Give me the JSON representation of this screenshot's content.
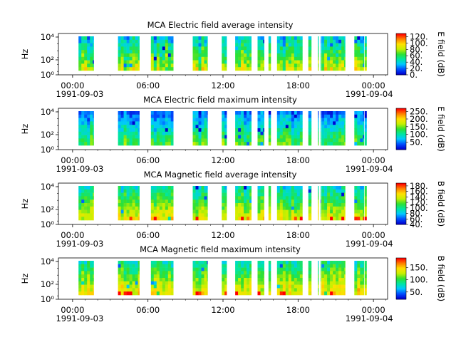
{
  "figure": {
    "background": "#ffffff",
    "colormap": [
      "#0000d0",
      "#0050ff",
      "#00c8ff",
      "#00e6a0",
      "#30e030",
      "#c8f000",
      "#ffe000",
      "#ff8000",
      "#ff0000"
    ]
  },
  "chart_data": [
    {
      "type": "heatmap",
      "title": "MCA  Electric field average intensity",
      "ylabel": "Hz",
      "y_scale": "log",
      "y_ticks": [
        "10⁰",
        "10²",
        "10⁴"
      ],
      "x_ticks": [
        {
          "time": "00:00",
          "date": "1991-09-03"
        },
        {
          "time": "06:00",
          "date": ""
        },
        {
          "time": "12:00",
          "date": ""
        },
        {
          "time": "18:00",
          "date": ""
        },
        {
          "time": "00:00",
          "date": "1991-09-04"
        }
      ],
      "colorbar": {
        "label": "E field (dB)",
        "ticks": [
          "0.",
          "20.",
          "40.",
          "60.",
          "80.",
          "100.",
          "120."
        ],
        "range": [
          0,
          130
        ]
      },
      "intensity": {
        "base": 0.45,
        "var": 0.22,
        "seed": 11
      }
    },
    {
      "type": "heatmap",
      "title": "MCA  Electric field maximum intensity",
      "ylabel": "Hz",
      "y_scale": "log",
      "y_ticks": [
        "10⁰",
        "10²",
        "10⁴"
      ],
      "x_ticks": [
        {
          "time": "00:00",
          "date": "1991-09-03"
        },
        {
          "time": "06:00",
          "date": ""
        },
        {
          "time": "12:00",
          "date": ""
        },
        {
          "time": "18:00",
          "date": ""
        },
        {
          "time": "00:00",
          "date": "1991-09-04"
        }
      ],
      "colorbar": {
        "label": "E field (dB)",
        "ticks": [
          "50.",
          "100.",
          "150.",
          "200.",
          "250."
        ],
        "range": [
          0,
          270
        ]
      },
      "intensity": {
        "base": 0.33,
        "var": 0.16,
        "seed": 23
      }
    },
    {
      "type": "heatmap",
      "title": "MCA  Magnetic field average intensity",
      "ylabel": "Hz",
      "y_scale": "log",
      "y_ticks": [
        "10⁰",
        "10²",
        "10⁴"
      ],
      "x_ticks": [
        {
          "time": "00:00",
          "date": "1991-09-03"
        },
        {
          "time": "06:00",
          "date": ""
        },
        {
          "time": "12:00",
          "date": ""
        },
        {
          "time": "18:00",
          "date": ""
        },
        {
          "time": "00:00",
          "date": "1991-09-04"
        }
      ],
      "colorbar": {
        "label": "B field (dB)",
        "ticks": [
          "40.",
          "60.",
          "80.",
          "100.",
          "120.",
          "140.",
          "160.",
          "180."
        ],
        "range": [
          40,
          190
        ]
      },
      "intensity": {
        "base": 0.52,
        "var": 0.16,
        "seed": 37
      }
    },
    {
      "type": "heatmap",
      "title": "MCA  Magnetic field maximum intensity",
      "ylabel": "Hz",
      "y_scale": "log",
      "y_ticks": [
        "10⁰",
        "10²",
        "10⁴"
      ],
      "x_ticks": [
        {
          "time": "00:00",
          "date": "1991-09-03"
        },
        {
          "time": "06:00",
          "date": ""
        },
        {
          "time": "12:00",
          "date": ""
        },
        {
          "time": "18:00",
          "date": ""
        },
        {
          "time": "00:00",
          "date": "1991-09-04"
        }
      ],
      "colorbar": {
        "label": "B field (dB)",
        "ticks": [
          "50.",
          "100.",
          "150."
        ],
        "range": [
          20,
          190
        ]
      },
      "intensity": {
        "base": 0.55,
        "var": 0.16,
        "seed": 53
      }
    }
  ]
}
